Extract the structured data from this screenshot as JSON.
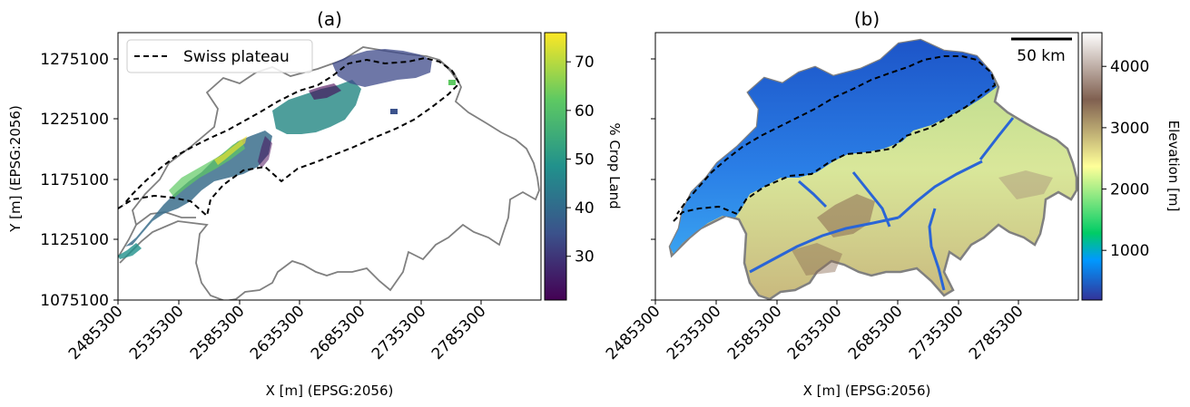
{
  "panels": [
    {
      "title": "(a)",
      "legend_label": "Swiss plateau",
      "colorbar_label": "% Crop Land",
      "colorbar_ticks": [
        30,
        40,
        50,
        60,
        70
      ],
      "colorbar_range": [
        21,
        76
      ],
      "colormap": [
        "#440154",
        "#3b528b",
        "#21918c",
        "#5ec962",
        "#fde725"
      ]
    },
    {
      "title": "(b)",
      "scalebar_label": "50 km",
      "colorbar_label": "Elevation [m]",
      "colorbar_ticks": [
        1000,
        2000,
        3000,
        4000
      ],
      "colorbar_range": [
        190,
        4550
      ],
      "colormap": [
        "#333399",
        "#0099ff",
        "#00cc66",
        "#ffff99",
        "#806050",
        "#ffffff"
      ]
    }
  ],
  "axes": {
    "xlabel": "X [m] (EPSG:2056)",
    "ylabel": "Y [m] (EPSG:2056)",
    "xticks": [
      "2485300",
      "2535300",
      "2585300",
      "2635300",
      "2685300",
      "2735300",
      "2785300"
    ],
    "yticks": [
      "1275100",
      "1225100",
      "1175100",
      "1125100",
      "1075100"
    ]
  },
  "colors": {
    "border": "#808080",
    "plateau": "#000000"
  }
}
